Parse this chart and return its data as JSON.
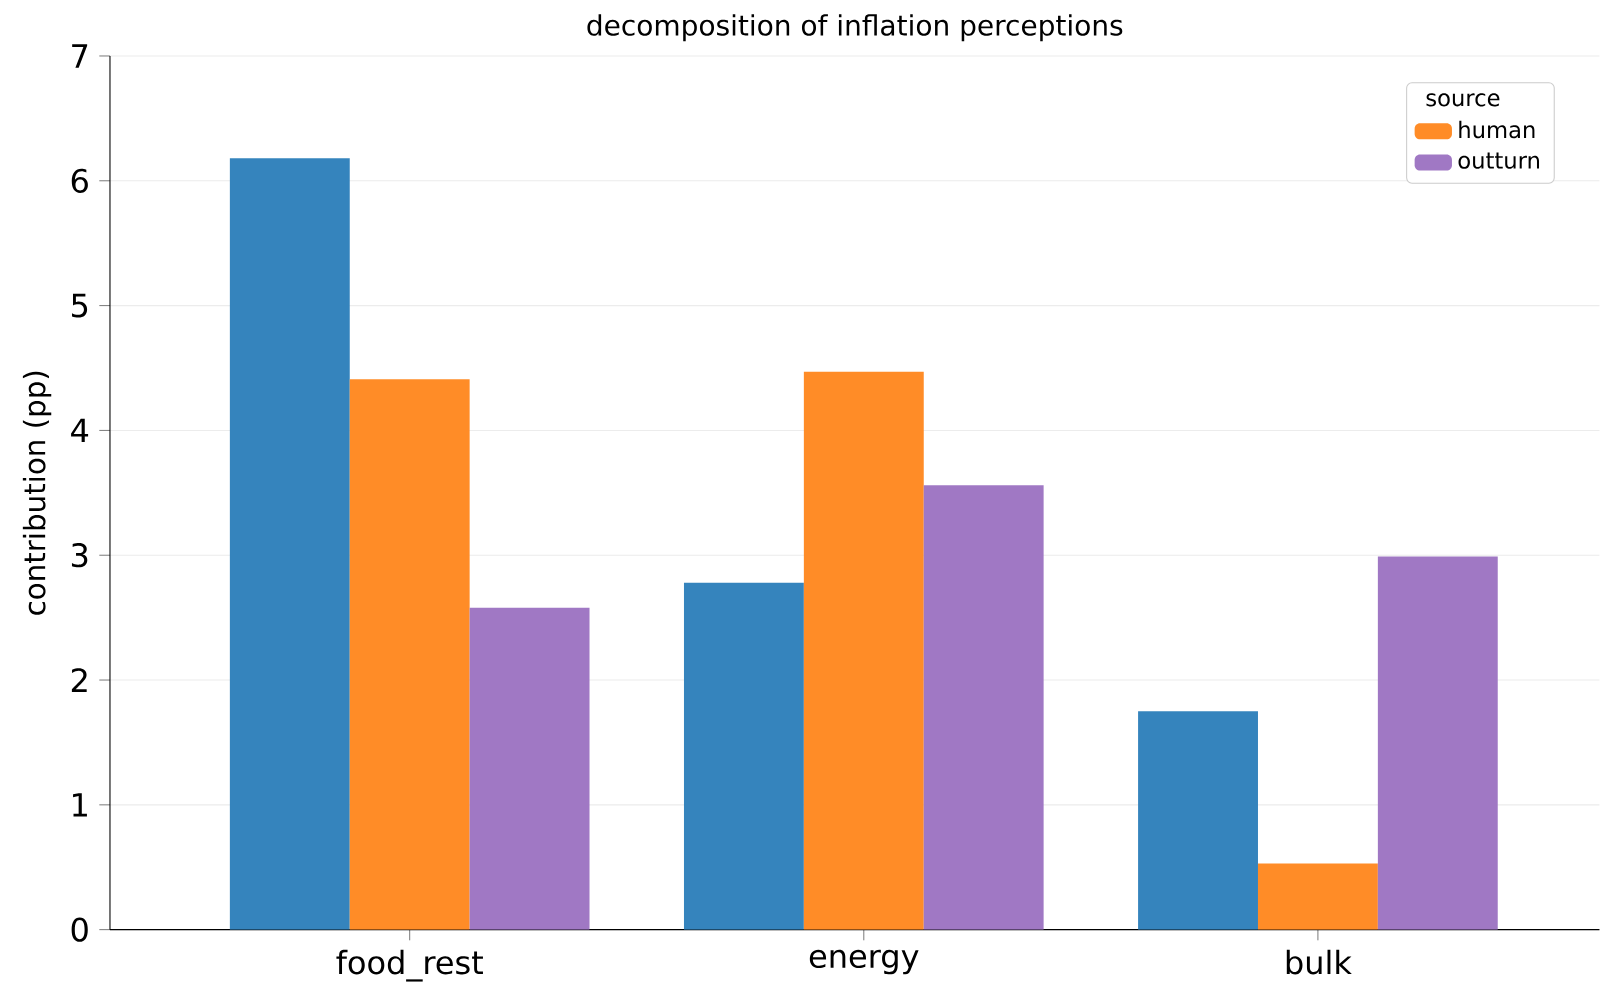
{
  "chart_data": {
    "type": "bar",
    "title": "decomposition of inflation perceptions",
    "ylabel": "contribution (pp)",
    "categories": [
      "food_rest",
      "energy",
      "bulk"
    ],
    "series": [
      {
        "color": "#3584bd",
        "values": [
          6.18,
          2.78,
          1.75
        ]
      },
      {
        "name": "human",
        "color": "#ff8c27",
        "values": [
          4.41,
          4.47,
          0.53
        ]
      },
      {
        "name": "outturn",
        "color": "#a078c4",
        "values": [
          2.58,
          3.56,
          2.99
        ]
      }
    ],
    "ylim": [
      0,
      7
    ],
    "yticks": [
      0,
      1,
      2,
      3,
      4,
      5,
      6,
      7
    ],
    "grid": "y",
    "legend": "top right",
    "legend_title": "source"
  }
}
